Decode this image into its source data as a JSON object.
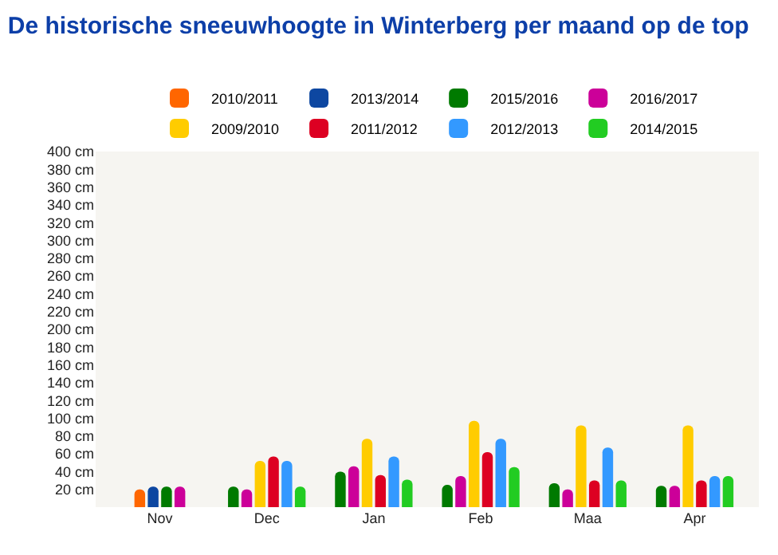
{
  "chart_data": {
    "type": "bar",
    "title": "De historische sneeuwhoogte in Winterberg per maand op de top",
    "categories": [
      "Nov",
      "Dec",
      "Jan",
      "Feb",
      "Maa",
      "Apr"
    ],
    "series": [
      {
        "name": "2010/2011",
        "color": "#ff6600",
        "values": [
          20,
          null,
          null,
          null,
          null,
          null
        ]
      },
      {
        "name": "2013/2014",
        "color": "#0d47a1",
        "values": [
          23,
          null,
          null,
          null,
          null,
          null
        ]
      },
      {
        "name": "2015/2016",
        "color": "#007a00",
        "values": [
          23,
          23,
          40,
          25,
          27,
          24
        ]
      },
      {
        "name": "2016/2017",
        "color": "#cc0099",
        "values": [
          23,
          20,
          46,
          35,
          20,
          24
        ]
      },
      {
        "name": "2009/2010",
        "color": "#ffcc00",
        "values": [
          null,
          52,
          77,
          97,
          92,
          92
        ]
      },
      {
        "name": "2011/2012",
        "color": "#dd0022",
        "values": [
          null,
          57,
          36,
          62,
          30,
          30
        ]
      },
      {
        "name": "2012/2013",
        "color": "#3399ff",
        "values": [
          null,
          52,
          57,
          77,
          67,
          35
        ]
      },
      {
        "name": "2014/2015",
        "color": "#22cc22",
        "values": [
          null,
          23,
          31,
          45,
          30,
          35
        ]
      }
    ],
    "ylim": [
      0,
      400
    ],
    "yticks": [
      {
        "value": 20,
        "label": "20 cm"
      },
      {
        "value": 40,
        "label": "40 cm"
      },
      {
        "value": 60,
        "label": "60 cm"
      },
      {
        "value": 80,
        "label": "80 cm"
      },
      {
        "value": 100,
        "label": "100 cm"
      },
      {
        "value": 120,
        "label": "120 cm"
      },
      {
        "value": 140,
        "label": "140 cm"
      },
      {
        "value": 160,
        "label": "160 cm"
      },
      {
        "value": 180,
        "label": "180 cm"
      },
      {
        "value": 200,
        "label": "200 cm"
      },
      {
        "value": 220,
        "label": "220 cm"
      },
      {
        "value": 240,
        "label": "240 cm"
      },
      {
        "value": 260,
        "label": "260 cm"
      },
      {
        "value": 280,
        "label": "280 cm"
      },
      {
        "value": 300,
        "label": "300 cm"
      },
      {
        "value": 320,
        "label": "320 cm"
      },
      {
        "value": 340,
        "label": "340 cm"
      },
      {
        "value": 360,
        "label": "360 cm"
      },
      {
        "value": 380,
        "label": "380 cm"
      },
      {
        "value": 400,
        "label": "400 cm"
      }
    ],
    "grid": false,
    "legend": "top"
  }
}
